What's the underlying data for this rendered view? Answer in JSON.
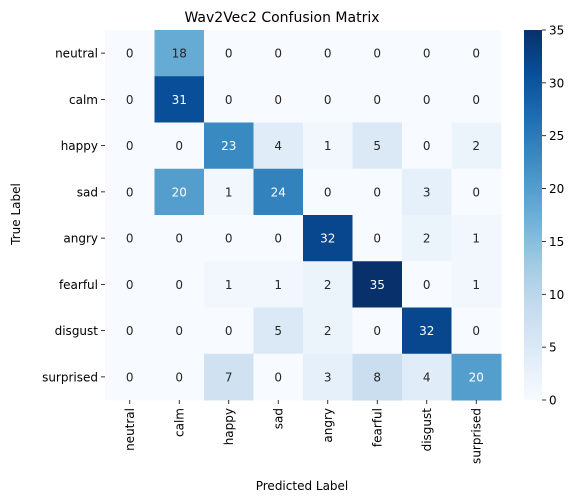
{
  "chart_data": {
    "type": "heatmap",
    "title": "Wav2Vec2 Confusion Matrix",
    "xlabel": "Predicted Label",
    "ylabel": "True Label",
    "x_categories": [
      "neutral",
      "calm",
      "happy",
      "sad",
      "angry",
      "fearful",
      "disgust",
      "surprised"
    ],
    "y_categories": [
      "neutral",
      "calm",
      "happy",
      "sad",
      "angry",
      "fearful",
      "disgust",
      "surprised"
    ],
    "values": [
      [
        0,
        18,
        0,
        0,
        0,
        0,
        0,
        0
      ],
      [
        0,
        31,
        0,
        0,
        0,
        0,
        0,
        0
      ],
      [
        0,
        0,
        23,
        4,
        1,
        5,
        0,
        2
      ],
      [
        0,
        20,
        1,
        24,
        0,
        0,
        3,
        0
      ],
      [
        0,
        0,
        0,
        0,
        32,
        0,
        2,
        1
      ],
      [
        0,
        0,
        1,
        1,
        2,
        35,
        0,
        1
      ],
      [
        0,
        0,
        0,
        5,
        2,
        0,
        32,
        0
      ],
      [
        0,
        0,
        7,
        0,
        3,
        8,
        4,
        20
      ]
    ],
    "colorscale": "Blues",
    "color_range": [
      0,
      35
    ],
    "colorbar_ticks": [
      0,
      5,
      10,
      15,
      20,
      25,
      30,
      35
    ],
    "annotations": true
  }
}
